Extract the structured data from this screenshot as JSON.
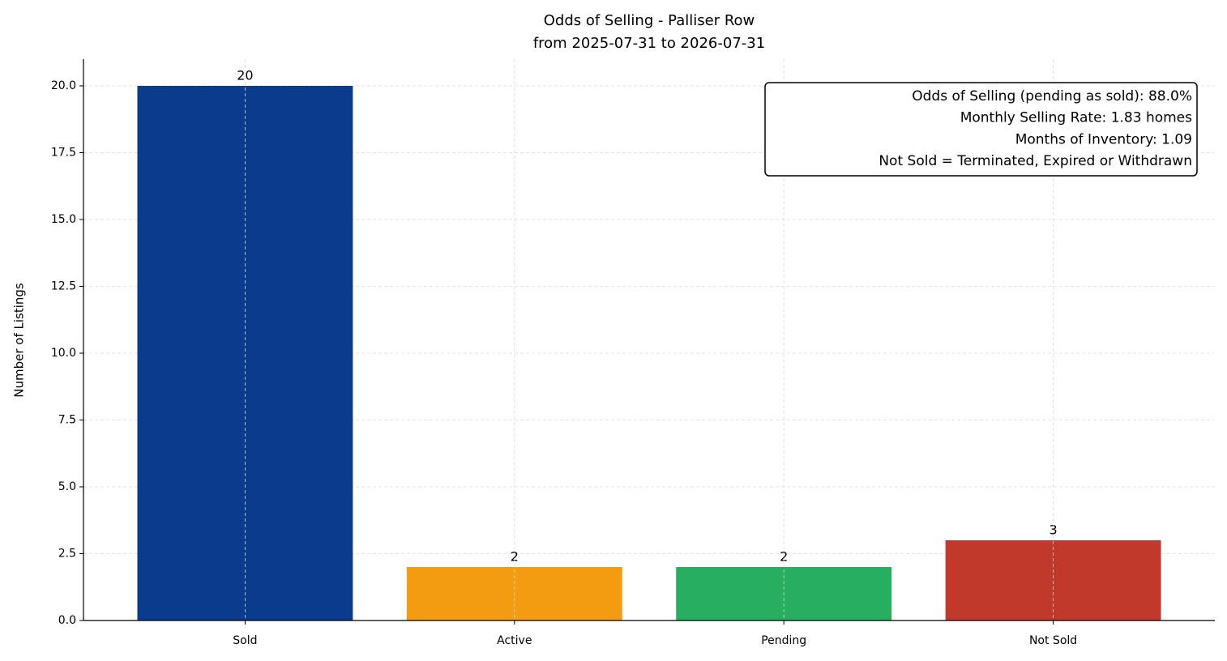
{
  "chart_data": {
    "type": "bar",
    "title": "Odds of Selling - Palliser Row",
    "subtitle": "from 2025-07-31 to 2026-07-31",
    "y_label": "Number of Listings",
    "categories": [
      "Sold",
      "Active",
      "Pending",
      "Not Sold"
    ],
    "values": [
      20,
      2,
      2,
      3
    ],
    "colors": [
      "#0b3b8c",
      "#f39c12",
      "#27ae60",
      "#c0392b"
    ],
    "ylim": [
      0,
      21
    ],
    "yticks": [
      {
        "value": 0,
        "label": "0.0"
      },
      2.5,
      {
        "value": 5,
        "label": "5.0"
      },
      7.5,
      {
        "value": 10,
        "label": "10.0"
      },
      12.5,
      {
        "value": 15,
        "label": "15.0"
      },
      17.5,
      {
        "value": 20,
        "label": "20.0"
      }
    ],
    "grid": true,
    "annotations": [
      "Odds of Selling (pending as sold): 88.0%",
      "Monthly Selling Rate: 1.83 homes",
      "Months of Inventory: 1.09",
      "Not Sold = Terminated, Expired or Withdrawn"
    ]
  }
}
